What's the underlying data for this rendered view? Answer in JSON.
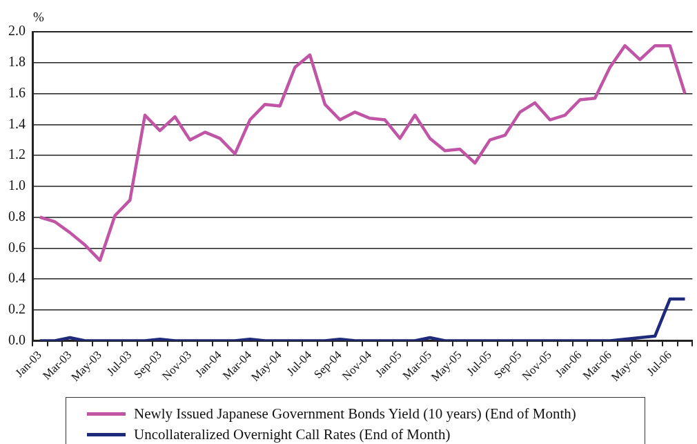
{
  "chart_data": {
    "type": "line",
    "ylabel": "%",
    "categories": [
      "Jan-03",
      null,
      "Mar-03",
      null,
      "May-03",
      null,
      "Jul-03",
      null,
      "Sep-03",
      null,
      "Nov-03",
      null,
      "Jan-04",
      null,
      "Mar-04",
      null,
      "May-04",
      null,
      "Jul-04",
      null,
      "Sep-04",
      null,
      "Nov-04",
      null,
      "Jan-05",
      null,
      "Mar-05",
      null,
      "May-05",
      null,
      "Jul-05",
      null,
      "Sep-05",
      null,
      "Nov-05",
      null,
      "Jan-06",
      null,
      "Mar-06",
      null,
      "May-06",
      null,
      "Jul-06",
      null
    ],
    "series": [
      {
        "name": "Newly Issued Japanese Government Bonds Yield (10 years) (End of Month)",
        "color": "#c055a5",
        "values": [
          0.8,
          0.77,
          0.7,
          0.62,
          0.52,
          0.81,
          0.91,
          1.46,
          1.36,
          1.45,
          1.3,
          1.35,
          1.31,
          1.21,
          1.43,
          1.53,
          1.52,
          1.77,
          1.85,
          1.53,
          1.43,
          1.48,
          1.44,
          1.43,
          1.31,
          1.46,
          1.31,
          1.23,
          1.24,
          1.15,
          1.3,
          1.33,
          1.48,
          1.54,
          1.43,
          1.46,
          1.56,
          1.57,
          1.77,
          1.91,
          1.82,
          1.91,
          1.91,
          1.6
        ]
      },
      {
        "name": "Uncollateralized Overnight Call Rates (End of Month)",
        "color": "#1f2a7a",
        "values": [
          0.0,
          0.0,
          0.02,
          0.0,
          0.0,
          0.0,
          0.0,
          0.0,
          0.01,
          0.0,
          0.0,
          0.0,
          0.0,
          0.0,
          0.01,
          0.0,
          0.0,
          0.0,
          0.0,
          0.0,
          0.01,
          0.0,
          0.0,
          0.0,
          0.0,
          0.0,
          0.02,
          0.0,
          0.0,
          0.0,
          0.0,
          0.0,
          0.0,
          0.0,
          0.0,
          0.0,
          0.0,
          0.0,
          0.0,
          0.01,
          0.02,
          0.03,
          0.27,
          0.27
        ]
      }
    ],
    "ylim": [
      0,
      2
    ],
    "yticks": [
      {
        "value": 0,
        "label": "0.0"
      },
      0.2,
      0.4,
      0.6,
      0.8,
      {
        "value": 1,
        "label": "1.0"
      },
      1.2,
      1.4,
      1.6,
      1.8,
      {
        "value": 2,
        "label": "2.0"
      }
    ],
    "grid": "y",
    "legend": "bottom",
    "marker": "none",
    "line_style": "solid"
  }
}
